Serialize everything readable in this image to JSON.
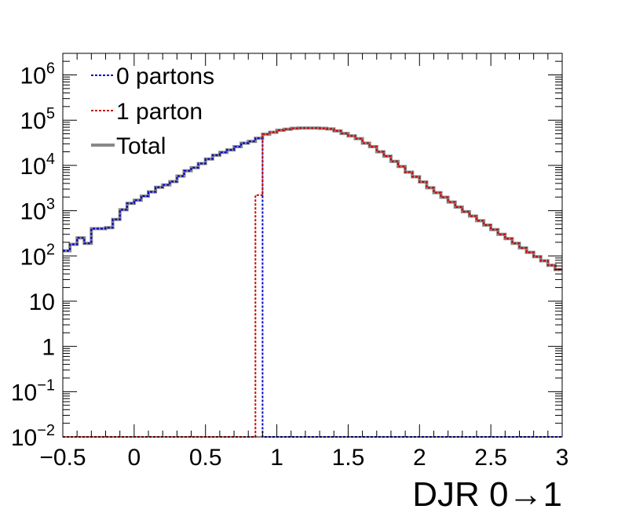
{
  "chart_data": {
    "type": "line",
    "xlabel": "DJR 0→1",
    "ylabel": "",
    "yscale": "log",
    "xlim": [
      -0.5,
      3.0
    ],
    "ylim": [
      0.01,
      3000000
    ],
    "bin_width": 0.05,
    "x_ticks": [
      {
        "value": -0.5,
        "label": "−0.5"
      },
      {
        "value": 0,
        "label": "0"
      },
      {
        "value": 0.5,
        "label": "0.5"
      },
      {
        "value": 1,
        "label": "1"
      },
      {
        "value": 1.5,
        "label": "1.5"
      },
      {
        "value": 2,
        "label": "2"
      },
      {
        "value": 2.5,
        "label": "2.5"
      },
      {
        "value": 3,
        "label": "3"
      }
    ],
    "y_ticks": [
      {
        "value": 0.01,
        "base": "10",
        "exp": "−2"
      },
      {
        "value": 0.1,
        "base": "10",
        "exp": "−1"
      },
      {
        "value": 1,
        "base": "1",
        "exp": ""
      },
      {
        "value": 10,
        "base": "10",
        "exp": ""
      },
      {
        "value": 100,
        "base": "10",
        "exp": "2"
      },
      {
        "value": 1000,
        "base": "10",
        "exp": "3"
      },
      {
        "value": 10000,
        "base": "10",
        "exp": "4"
      },
      {
        "value": 100000,
        "base": "10",
        "exp": "5"
      },
      {
        "value": 1000000,
        "base": "10",
        "exp": "6"
      }
    ],
    "legend": {
      "position": "top-left",
      "entries": [
        {
          "label": "0 partons",
          "color": "#0000cc",
          "style": "dotted"
        },
        {
          "label": "1 parton",
          "color": "#cc0000",
          "style": "dotted"
        },
        {
          "label": "Total",
          "color": "#888888",
          "style": "solid"
        }
      ]
    },
    "series": [
      {
        "name": "Total",
        "color": "#888888",
        "x_start": -0.5,
        "values": [
          130,
          180,
          250,
          190,
          400,
          400,
          420,
          640,
          1050,
          1450,
          1700,
          2100,
          2600,
          3300,
          3700,
          4400,
          5800,
          7600,
          8900,
          11000,
          13800,
          16800,
          19500,
          22000,
          26000,
          31000,
          34000,
          40000,
          49000,
          54000,
          60000,
          63000,
          66000,
          67000,
          67000,
          67000,
          66000,
          64000,
          58000,
          51000,
          45000,
          39000,
          31000,
          26000,
          20000,
          16000,
          12300,
          9500,
          7100,
          5600,
          4300,
          3200,
          2500,
          1980,
          1550,
          1200,
          950,
          760,
          600,
          480,
          380,
          300,
          240,
          190,
          150,
          120,
          96,
          78,
          62,
          50
        ]
      },
      {
        "name": "0 partons",
        "color": "#0000cc",
        "x_start": -0.5,
        "values": [
          130,
          180,
          250,
          190,
          400,
          400,
          420,
          640,
          1050,
          1450,
          1700,
          2100,
          2600,
          3300,
          3700,
          4400,
          5800,
          7600,
          8900,
          11000,
          13800,
          16800,
          19500,
          22000,
          26000,
          31000,
          34000,
          40000,
          0.01,
          0.01,
          0.01,
          0.01,
          0.01,
          0.01,
          0.01,
          0.01,
          0.01,
          0.01,
          0.01,
          0.01,
          0.01,
          0.01,
          0.01,
          0.01,
          0.01,
          0.01,
          0.01,
          0.01,
          0.01,
          0.01,
          0.01,
          0.01,
          0.01,
          0.01,
          0.01,
          0.01,
          0.01,
          0.01,
          0.01,
          0.01,
          0.01,
          0.01,
          0.01,
          0.01,
          0.01,
          0.01,
          0.01,
          0.01,
          0.01,
          0.01
        ]
      },
      {
        "name": "1 parton",
        "color": "#cc0000",
        "x_start": -0.5,
        "values": [
          0.01,
          0.01,
          0.01,
          0.01,
          0.01,
          0.01,
          0.01,
          0.01,
          0.01,
          0.01,
          0.01,
          0.01,
          0.01,
          0.01,
          0.01,
          0.01,
          0.01,
          0.01,
          0.01,
          0.01,
          0.01,
          0.01,
          0.01,
          0.01,
          0.01,
          0.01,
          0.01,
          2200,
          49000,
          54000,
          60000,
          63000,
          66000,
          67000,
          67000,
          67000,
          66000,
          64000,
          58000,
          51000,
          45000,
          39000,
          31000,
          26000,
          20000,
          16000,
          12300,
          9500,
          7100,
          5600,
          4300,
          3200,
          2500,
          1980,
          1550,
          1200,
          950,
          760,
          600,
          480,
          380,
          300,
          240,
          190,
          150,
          120,
          96,
          78,
          62,
          50
        ]
      }
    ]
  }
}
